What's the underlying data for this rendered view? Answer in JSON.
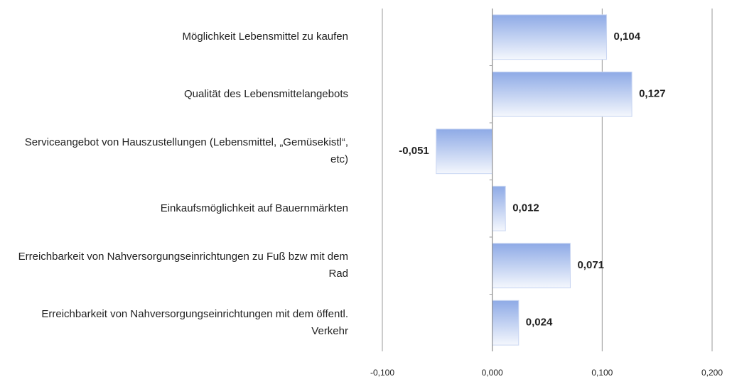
{
  "chart_data": {
    "type": "barh",
    "categories": [
      "Möglichkeit Lebensmittel zu kaufen",
      "Qualität des Lebensmittelangebots",
      "Serviceangebot von Hauszustellungen (Lebensmittel, „Gemüsekistl“, etc)",
      "Einkaufsmöglichkeit auf Bauernmärkten",
      "Erreichbarkeit von Nahversorgungseinrichtungen zu Fuß bzw mit dem Rad",
      "Erreichbarkeit von Nahversorgungseinrichtungen mit dem öffentl. Verkehr"
    ],
    "values": [
      0.104,
      0.127,
      -0.051,
      0.012,
      0.071,
      0.024
    ],
    "value_labels": [
      "0,104",
      "0,127",
      "-0,051",
      "0,012",
      "0,071",
      "0,024"
    ],
    "color": "#8eaae6",
    "xlim": [
      -0.1,
      0.2
    ],
    "xticks": [
      {
        "value": -0.1,
        "label": "-0,100"
      },
      {
        "value": 0,
        "label": "0,000"
      },
      {
        "value": 0.1,
        "label": "0,100"
      },
      {
        "value": 0.2,
        "label": "0,200"
      }
    ],
    "grid": true
  }
}
